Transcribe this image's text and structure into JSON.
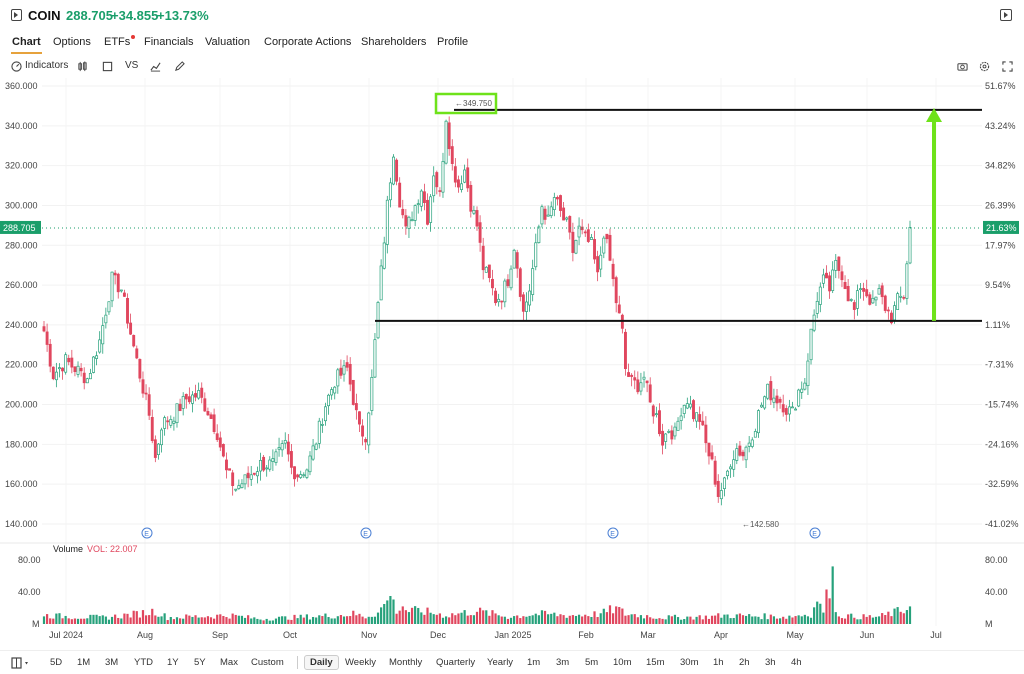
{
  "header": {
    "symbol": "COIN",
    "price": "288.705",
    "change": "+34.855",
    "change_pct": "+13.73%",
    "up_color": "#1a9e6a"
  },
  "tabs": [
    {
      "label": "Chart",
      "active": true
    },
    {
      "label": "Options"
    },
    {
      "label": "ETFs",
      "badge": true
    },
    {
      "label": "Financials"
    },
    {
      "label": "Valuation"
    },
    {
      "label": "Corporate Actions"
    },
    {
      "label": "Shareholders"
    },
    {
      "label": "Profile"
    }
  ],
  "toolbar": {
    "indicators_label": "Indicators",
    "vs_label": "VS"
  },
  "range_buttons": [
    "5D",
    "1M",
    "3M",
    "YTD",
    "1Y",
    "5Y",
    "Max",
    "Custom"
  ],
  "interval_buttons": [
    "Daily",
    "Weekly",
    "Monthly",
    "Quarterly",
    "Yearly",
    "1m",
    "3m",
    "5m",
    "10m",
    "15m",
    "30m",
    "1h",
    "2h",
    "3h",
    "4h"
  ],
  "active_interval": "Daily",
  "chart_data": {
    "type": "candlestick",
    "y_ticks": [
      "360.000",
      "340.000",
      "320.000",
      "300.000",
      "280.000",
      "260.000",
      "240.000",
      "220.000",
      "200.000",
      "180.000",
      "160.000",
      "140.000"
    ],
    "y_range": [
      140,
      360
    ],
    "pct_ticks": [
      "51.67%",
      "43.24%",
      "34.82%",
      "26.39%",
      "17.97%",
      "9.54%",
      "1.11%",
      "-7.31%",
      "-15.74%",
      "-24.16%",
      "-32.59%",
      "-41.02%"
    ],
    "x_labels": [
      "Jul 2024",
      "Aug",
      "Sep",
      "Oct",
      "Nov",
      "Dec",
      "Jan 2025",
      "Feb",
      "Mar",
      "Apr",
      "May",
      "Jun",
      "Jul"
    ],
    "last_price_label": "288.705",
    "last_pct_label": "21.63%",
    "high_label": "349.750",
    "low_label": "142.580",
    "earnings_marker": "E",
    "volume_label": "Volume",
    "vol_value": "VOL: 22.007",
    "vol_ticks": [
      "80.00",
      "40.00",
      "M"
    ],
    "annotations": {
      "resistance": 348,
      "support": 242,
      "arrow_color": "#6ee21a",
      "box_color": "#6ee21a"
    },
    "up_color": "#26a17b",
    "down_color": "#e0465e",
    "anchors": [
      [
        0,
        237
      ],
      [
        3,
        215
      ],
      [
        7,
        222
      ],
      [
        11,
        217
      ],
      [
        14,
        213
      ],
      [
        18,
        232
      ],
      [
        22,
        263
      ],
      [
        25,
        258
      ],
      [
        28,
        236
      ],
      [
        31,
        215
      ],
      [
        34,
        195
      ],
      [
        36,
        173
      ],
      [
        38,
        190
      ],
      [
        42,
        195
      ],
      [
        46,
        203
      ],
      [
        50,
        205
      ],
      [
        53,
        197
      ],
      [
        56,
        186
      ],
      [
        59,
        166
      ],
      [
        62,
        158
      ],
      [
        65,
        162
      ],
      [
        70,
        170
      ],
      [
        74,
        170
      ],
      [
        78,
        180
      ],
      [
        80,
        168
      ],
      [
        82,
        165
      ],
      [
        85,
        168
      ],
      [
        88,
        182
      ],
      [
        91,
        200
      ],
      [
        94,
        212
      ],
      [
        98,
        218
      ],
      [
        100,
        203
      ],
      [
        102,
        187
      ],
      [
        104,
        185
      ],
      [
        106,
        212
      ],
      [
        108,
        250
      ],
      [
        111,
        300
      ],
      [
        113,
        328
      ],
      [
        115,
        303
      ],
      [
        117,
        287
      ],
      [
        120,
        300
      ],
      [
        122,
        309
      ],
      [
        124,
        294
      ],
      [
        126,
        317
      ],
      [
        128,
        305
      ],
      [
        130,
        345
      ],
      [
        132,
        320
      ],
      [
        134,
        310
      ],
      [
        136,
        318
      ],
      [
        138,
        301
      ],
      [
        140,
        290
      ],
      [
        142,
        269
      ],
      [
        144,
        262
      ],
      [
        146,
        253
      ],
      [
        148,
        255
      ],
      [
        150,
        263
      ],
      [
        152,
        280
      ],
      [
        153,
        270
      ],
      [
        155,
        246
      ],
      [
        157,
        258
      ],
      [
        159,
        278
      ],
      [
        161,
        300
      ],
      [
        163,
        292
      ],
      [
        165,
        304
      ],
      [
        167,
        296
      ],
      [
        169,
        290
      ],
      [
        171,
        277
      ],
      [
        173,
        288
      ],
      [
        175,
        283
      ],
      [
        177,
        280
      ],
      [
        179,
        264
      ],
      [
        181,
        287
      ],
      [
        183,
        272
      ],
      [
        185,
        252
      ],
      [
        187,
        236
      ],
      [
        188,
        218
      ],
      [
        190,
        211
      ],
      [
        192,
        210
      ],
      [
        194,
        214
      ],
      [
        196,
        200
      ],
      [
        198,
        194
      ],
      [
        200,
        182
      ],
      [
        202,
        188
      ],
      [
        204,
        185
      ],
      [
        206,
        198
      ],
      [
        208,
        203
      ],
      [
        210,
        195
      ],
      [
        212,
        193
      ],
      [
        214,
        180
      ],
      [
        216,
        170
      ],
      [
        218,
        155
      ],
      [
        220,
        160
      ],
      [
        222,
        172
      ],
      [
        224,
        178
      ],
      [
        226,
        175
      ],
      [
        228,
        182
      ],
      [
        230,
        190
      ],
      [
        232,
        200
      ],
      [
        234,
        207
      ],
      [
        236,
        204
      ],
      [
        238,
        202
      ],
      [
        240,
        198
      ],
      [
        242,
        196
      ],
      [
        244,
        207
      ],
      [
        246,
        212
      ],
      [
        248,
        236
      ],
      [
        250,
        254
      ],
      [
        252,
        262
      ],
      [
        254,
        258
      ],
      [
        256,
        270
      ],
      [
        258,
        266
      ],
      [
        260,
        255
      ],
      [
        262,
        247
      ],
      [
        264,
        260
      ],
      [
        266,
        256
      ],
      [
        268,
        250
      ],
      [
        270,
        256
      ],
      [
        272,
        249
      ],
      [
        274,
        244
      ],
      [
        276,
        252
      ],
      [
        278,
        255
      ],
      [
        280,
        289
      ]
    ],
    "volume": [
      [
        0,
        12
      ],
      [
        10,
        10
      ],
      [
        20,
        9
      ],
      [
        30,
        14
      ],
      [
        36,
        18
      ],
      [
        40,
        9
      ],
      [
        60,
        12
      ],
      [
        70,
        7
      ],
      [
        80,
        9
      ],
      [
        95,
        12
      ],
      [
        100,
        14
      ],
      [
        104,
        10
      ],
      [
        108,
        16
      ],
      [
        110,
        25
      ],
      [
        112,
        35
      ],
      [
        114,
        20
      ],
      [
        116,
        22
      ],
      [
        118,
        18
      ],
      [
        122,
        18
      ],
      [
        130,
        12
      ],
      [
        140,
        18
      ],
      [
        150,
        10
      ],
      [
        160,
        14
      ],
      [
        170,
        12
      ],
      [
        180,
        14
      ],
      [
        185,
        22
      ],
      [
        188,
        14
      ],
      [
        200,
        9
      ],
      [
        215,
        10
      ],
      [
        220,
        12
      ],
      [
        240,
        10
      ],
      [
        244,
        12
      ],
      [
        248,
        14
      ],
      [
        250,
        28
      ],
      [
        252,
        18
      ],
      [
        255,
        72
      ],
      [
        256,
        14
      ],
      [
        258,
        12
      ],
      [
        262,
        10
      ],
      [
        270,
        10
      ],
      [
        280,
        22
      ]
    ]
  }
}
